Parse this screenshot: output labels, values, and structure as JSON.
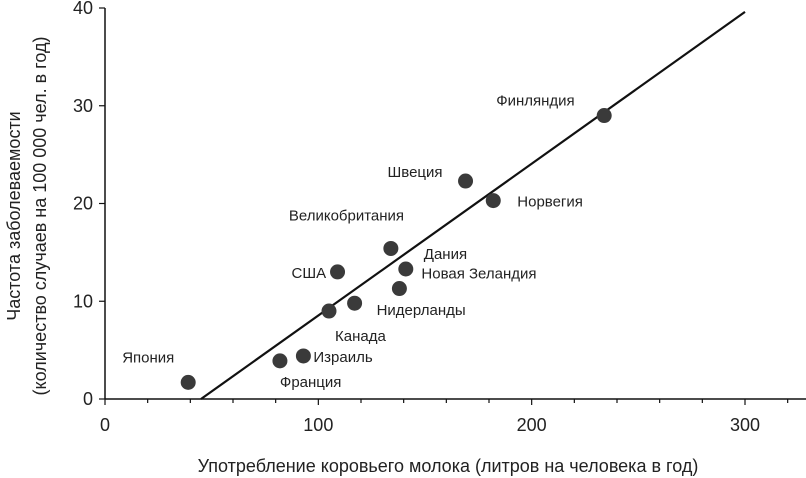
{
  "chart_data": {
    "type": "scatter",
    "xlabel": "Употребление коровьего молока (литров на человека в год)",
    "ylabel_lines": [
      "Частота заболеваемости",
      "(количество случаев на 100 000 чел. в год)"
    ],
    "xlim": [
      0,
      330
    ],
    "ylim": [
      0,
      40
    ],
    "x_ticks": [
      0,
      100,
      200,
      300
    ],
    "x_minor_ticks": [
      20,
      40,
      60,
      80,
      120,
      140,
      160,
      180,
      220,
      240,
      260,
      280,
      320
    ],
    "y_ticks": [
      0,
      10,
      20,
      30,
      40
    ],
    "grid": false,
    "point_color": "#3a3a3a",
    "points": [
      {
        "label": "Япония",
        "x": 39,
        "y": 1.7
      },
      {
        "label": "Франция",
        "x": 82,
        "y": 3.9
      },
      {
        "label": "Израиль",
        "x": 93,
        "y": 4.4
      },
      {
        "label": "Канада",
        "x": 105,
        "y": 9.0
      },
      {
        "label": "США",
        "x": 109,
        "y": 13.0
      },
      {
        "label": "Нидерланды",
        "x": 117,
        "y": 9.8
      },
      {
        "label": "Великобритания",
        "x": 134,
        "y": 15.4
      },
      {
        "label": "Новая Зеландия",
        "x": 138,
        "y": 11.3
      },
      {
        "label": "Дания",
        "x": 141,
        "y": 13.3
      },
      {
        "label": "Швеция",
        "x": 169,
        "y": 22.3
      },
      {
        "label": "Норвегия",
        "x": 182,
        "y": 20.3
      },
      {
        "label": "Финляндия",
        "x": 234,
        "y": 29.0
      }
    ],
    "trendline": {
      "x": [
        45,
        300
      ],
      "y": [
        0,
        39.6
      ]
    }
  }
}
